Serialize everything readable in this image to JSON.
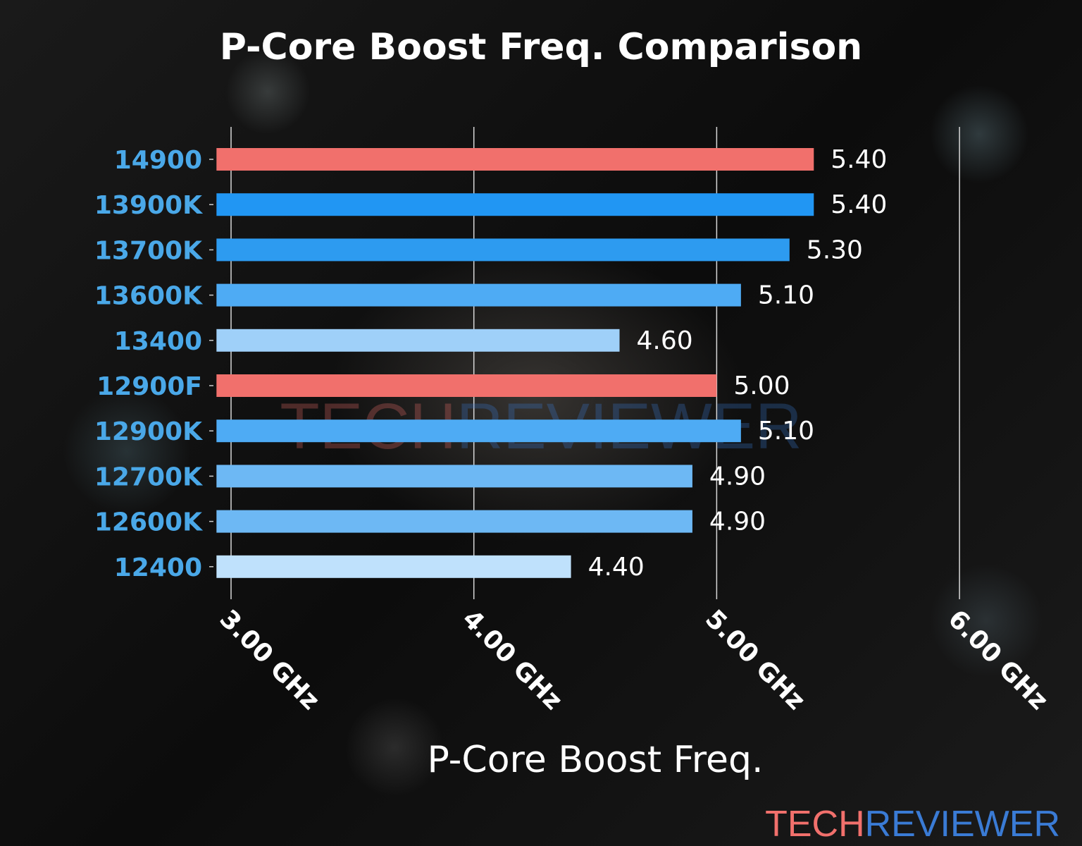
{
  "chart_data": {
    "type": "bar",
    "orientation": "horizontal",
    "title": "P-Core Boost Freq. Comparison",
    "xlabel": "P-Core Boost Freq.",
    "ylabel": "",
    "categories": [
      "14900",
      "13900K",
      "13700K",
      "13600K",
      "13400",
      "12900F",
      "12900K",
      "12700K",
      "12600K",
      "12400"
    ],
    "values": [
      5.4,
      5.4,
      5.3,
      5.1,
      4.6,
      5.0,
      5.1,
      4.9,
      4.9,
      4.4
    ],
    "value_labels": [
      "5.40",
      "5.40",
      "5.30",
      "5.10",
      "4.60",
      "5.00",
      "5.10",
      "4.90",
      "4.90",
      "4.40"
    ],
    "colors": [
      "#f1706c",
      "#2196f3",
      "#2d9bf0",
      "#4eabf4",
      "#9fd0f9",
      "#f1706c",
      "#4eabf4",
      "#6db8f4",
      "#6db8f4",
      "#bfe1fc"
    ],
    "xticks": [
      3,
      4,
      5,
      6
    ],
    "xtick_labels": [
      "3.00 GHz",
      "4.00 GHz",
      "5.00 GHz",
      "6.00 GHz"
    ],
    "xlim": [
      2.94,
      6.0
    ],
    "grid": "vertical",
    "category_label_color": "#4aa8e8"
  },
  "watermark": {
    "part1": "TECH",
    "part2": "REVIEWER",
    "color1": "#f1706c",
    "color2": "#3a7bd5"
  }
}
